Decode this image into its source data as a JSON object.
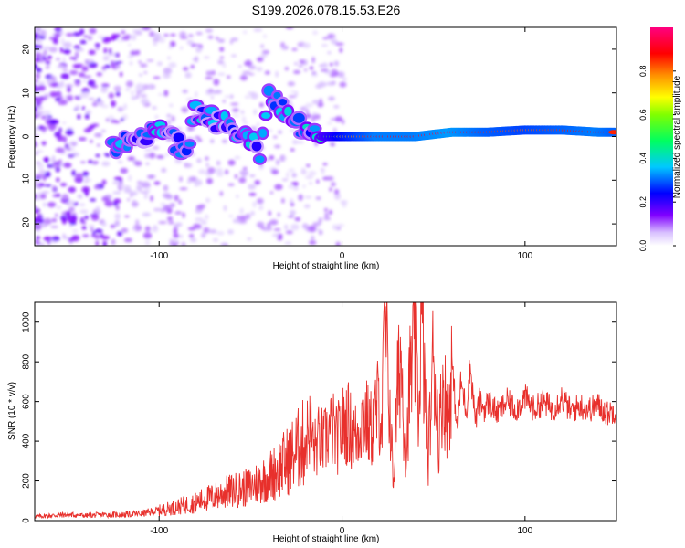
{
  "title": "S199.2026.078.15.53.E26",
  "chart_data": [
    {
      "type": "heatmap",
      "name": "spectrogram",
      "xlabel": "Height of straight line (km)",
      "ylabel": "Frequency (Hz)",
      "xlim": [
        -168,
        150
      ],
      "ylim": [
        -25,
        25
      ],
      "xticks": [
        -100,
        0,
        100
      ],
      "yticks": [
        20,
        10,
        0,
        -10,
        -20
      ],
      "colorbar": {
        "label": "Normalized spectral amplitude",
        "range": [
          0,
          1
        ],
        "ticks": [
          0.0,
          0.2,
          0.4,
          0.6,
          0.8
        ],
        "colors": [
          "#ffffff",
          "#c8a8ff",
          "#8000ff",
          "#0000ff",
          "#00ffff",
          "#00ff00",
          "#ffff00",
          "#ff8000",
          "#ff0000",
          "#ff0080"
        ]
      },
      "ridge": {
        "description_points": [
          {
            "x": -125,
            "y": -2,
            "a": 0.35
          },
          {
            "x": -110,
            "y": 0,
            "a": 0.3
          },
          {
            "x": -98,
            "y": 2,
            "a": 0.35
          },
          {
            "x": -85,
            "y": -4,
            "a": 0.3
          },
          {
            "x": -80,
            "y": 6,
            "a": 0.35
          },
          {
            "x": -70,
            "y": 4,
            "a": 0.35
          },
          {
            "x": -60,
            "y": 2,
            "a": 0.3
          },
          {
            "x": -50,
            "y": 0,
            "a": 0.35
          },
          {
            "x": -45,
            "y": -5,
            "a": 0.35
          },
          {
            "x": -40,
            "y": 10,
            "a": 0.3
          },
          {
            "x": -25,
            "y": 3,
            "a": 0.35
          },
          {
            "x": -15,
            "y": 1,
            "a": 0.4
          },
          {
            "x": -10,
            "y": 0,
            "a": 0.5
          },
          {
            "x": 0,
            "y": 0,
            "a": 0.7
          },
          {
            "x": 20,
            "y": 0,
            "a": 0.9
          },
          {
            "x": 40,
            "y": 0,
            "a": 0.9
          },
          {
            "x": 60,
            "y": 1,
            "a": 0.95
          },
          {
            "x": 80,
            "y": 1,
            "a": 0.85
          },
          {
            "x": 100,
            "y": 1.5,
            "a": 0.8
          },
          {
            "x": 120,
            "y": 1.5,
            "a": 0.85
          },
          {
            "x": 140,
            "y": 1,
            "a": 0.9
          },
          {
            "x": 150,
            "y": 1,
            "a": 0.85
          }
        ]
      }
    },
    {
      "type": "line",
      "name": "snr",
      "xlabel": "Height of straight line (km)",
      "ylabel": "SNR (10 * v/v)",
      "xlim": [
        -168,
        150
      ],
      "ylim": [
        0,
        1100
      ],
      "xticks": [
        -100,
        0,
        100
      ],
      "yticks": [
        0,
        200,
        400,
        600,
        800,
        1000
      ],
      "color": "#e8302c",
      "series": [
        {
          "name": "SNR",
          "x": [
            -168,
            -160,
            -150,
            -140,
            -130,
            -120,
            -110,
            -100,
            -95,
            -90,
            -85,
            -80,
            -75,
            -70,
            -65,
            -60,
            -55,
            -50,
            -45,
            -40,
            -35,
            -30,
            -25,
            -20,
            -18,
            -15,
            -12,
            -10,
            -8,
            -5,
            -3,
            0,
            3,
            5,
            8,
            10,
            13,
            15,
            17,
            20,
            22,
            23,
            25,
            27,
            28,
            30,
            32,
            35,
            37,
            40,
            42,
            43,
            45,
            47,
            50,
            53,
            55,
            58,
            60,
            63,
            65,
            68,
            70,
            73,
            75,
            78,
            80,
            85,
            90,
            95,
            100,
            105,
            110,
            115,
            120,
            125,
            130,
            135,
            140,
            145,
            150
          ],
          "values": [
            20,
            25,
            30,
            25,
            30,
            30,
            35,
            50,
            60,
            70,
            80,
            90,
            110,
            120,
            140,
            150,
            160,
            170,
            200,
            220,
            260,
            300,
            350,
            400,
            480,
            360,
            420,
            380,
            440,
            460,
            400,
            470,
            500,
            450,
            420,
            500,
            520,
            450,
            480,
            600,
            500,
            950,
            750,
            400,
            180,
            600,
            850,
            300,
            700,
            900,
            500,
            1080,
            700,
            300,
            850,
            400,
            700,
            500,
            800,
            450,
            700,
            550,
            780,
            500,
            600,
            560,
            600,
            540,
            600,
            560,
            620,
            560,
            600,
            560,
            620,
            550,
            580,
            560,
            580,
            540,
            560
          ]
        }
      ]
    }
  ]
}
